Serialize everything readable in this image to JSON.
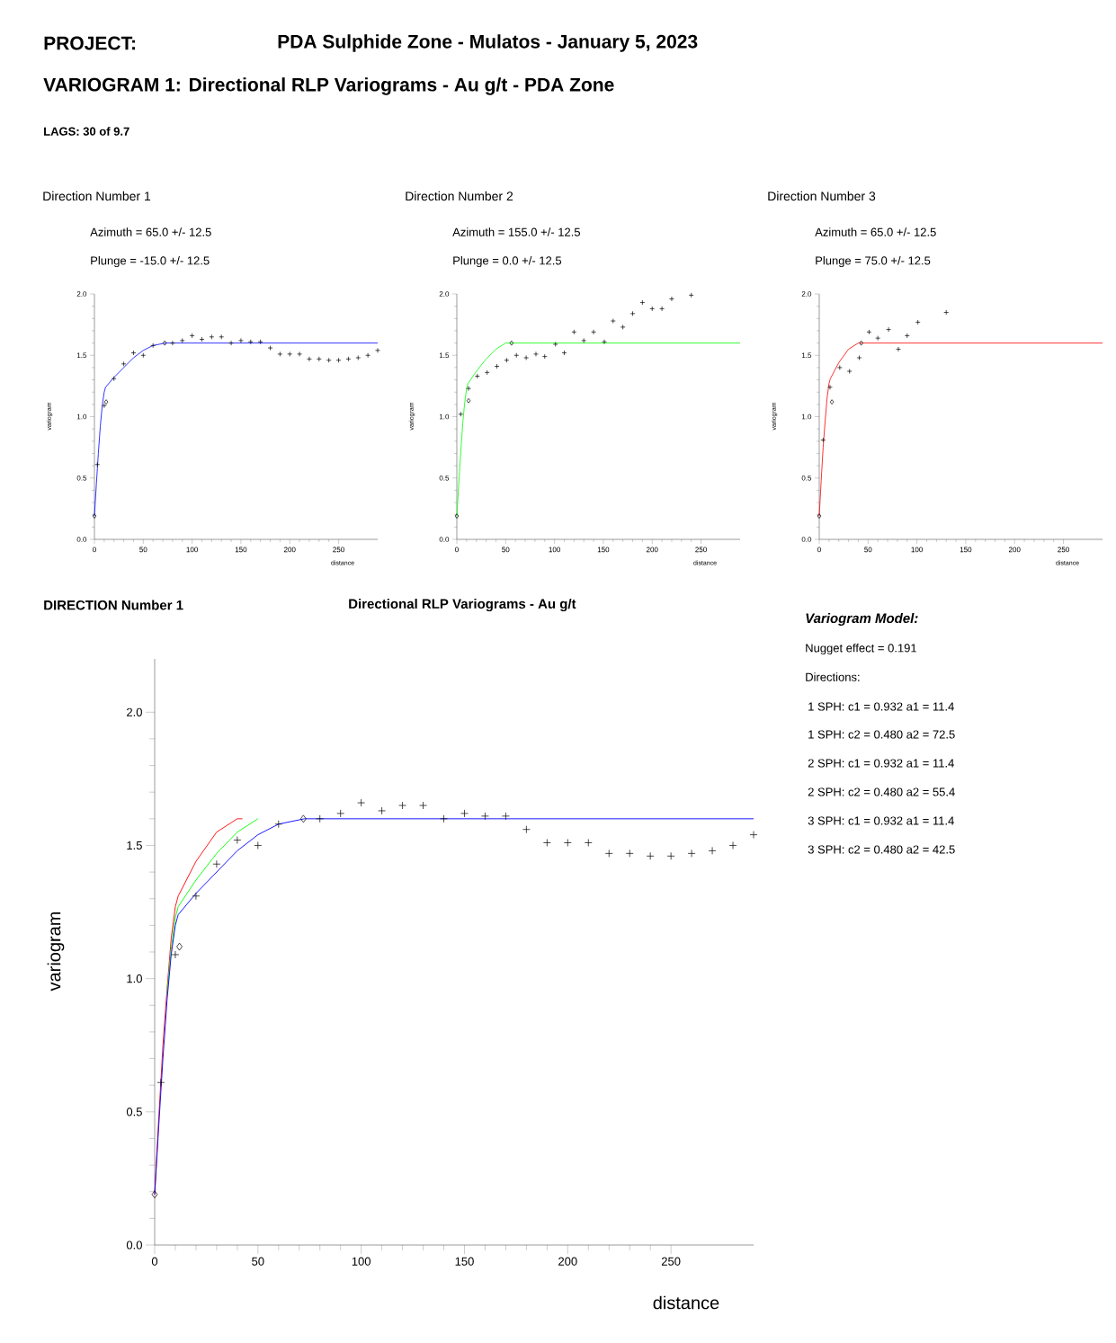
{
  "chart_data": [
    {
      "type": "other",
      "annotations": [
        "PROJECT:",
        "PDA Sulphide Zone - Mulatos - January 5, 2023",
        "VARIOGRAM 1: Directional RLP Variograms - Au g/t - PDA Zone",
        "LAGS: 30 of 9.7"
      ]
    },
    {
      "type": "line",
      "title": "Direction Number 1",
      "annotations": [
        "Azimuth = 65.0 +/- 12.5",
        "Plunge = -15.0 +/- 12.5"
      ],
      "xlabel": "distance",
      "ylabel": "variogram",
      "xlim": [
        0,
        290
      ],
      "ylim": [
        0,
        2.0
      ],
      "xticks": [
        0,
        50,
        100,
        150,
        200,
        250
      ],
      "yticks": [
        {
          "value": 0,
          "label": "0.0"
        },
        {
          "value": 0.5,
          "label": "0.5"
        },
        {
          "value": 1.0,
          "label": "1.0"
        },
        {
          "value": 1.5,
          "label": "1.5"
        },
        {
          "value": 2.0,
          "label": "2.0"
        }
      ],
      "series": [
        {
          "type": "line",
          "color": "#0000ff",
          "x": [
            0,
            2,
            4,
            6,
            8,
            10,
            11.4,
            20,
            30,
            40,
            50,
            60,
            72.5,
            290
          ],
          "values": [
            0.19,
            0.45,
            0.7,
            0.92,
            1.09,
            1.2,
            1.24,
            1.32,
            1.4,
            1.48,
            1.54,
            1.58,
            1.6,
            1.6
          ]
        },
        {
          "type": "scatter",
          "marker": "cross",
          "color": "#000000",
          "x": [
            3,
            10,
            20,
            30,
            40,
            50,
            60,
            80,
            90,
            100,
            110,
            120,
            130,
            140,
            150,
            160,
            170,
            180,
            190,
            200,
            210,
            220,
            230,
            240,
            250,
            260,
            270,
            280,
            290
          ],
          "values": [
            0.61,
            1.09,
            1.31,
            1.43,
            1.52,
            1.5,
            1.58,
            1.6,
            1.62,
            1.66,
            1.63,
            1.65,
            1.65,
            1.6,
            1.62,
            1.61,
            1.61,
            1.56,
            1.51,
            1.51,
            1.51,
            1.47,
            1.47,
            1.46,
            1.46,
            1.47,
            1.48,
            1.5,
            1.54
          ]
        },
        {
          "type": "scatter",
          "marker": "diamond",
          "color": "#000000",
          "x": [
            0,
            12,
            72
          ],
          "values": [
            0.19,
            1.12,
            1.6
          ]
        }
      ]
    },
    {
      "type": "line",
      "title": "Direction Number 2",
      "annotations": [
        "Azimuth = 155.0 +/- 12.5",
        "Plunge = 0.0 +/- 12.5"
      ],
      "xlabel": "distance",
      "ylabel": "variogram",
      "xlim": [
        0,
        290
      ],
      "ylim": [
        0,
        2.0
      ],
      "xticks": [
        0,
        50,
        100,
        150,
        200,
        250
      ],
      "yticks": [
        {
          "value": 0,
          "label": "0.0"
        },
        {
          "value": 0.5,
          "label": "0.5"
        },
        {
          "value": 1.0,
          "label": "1.0"
        },
        {
          "value": 1.5,
          "label": "1.5"
        },
        {
          "value": 2.0,
          "label": "2.0"
        }
      ],
      "series": [
        {
          "type": "line",
          "color": "#00ff00",
          "x": [
            0,
            2,
            4,
            6,
            8,
            10,
            11.4,
            20,
            30,
            40,
            50,
            55.4,
            290
          ],
          "values": [
            0.19,
            0.46,
            0.71,
            0.94,
            1.11,
            1.23,
            1.27,
            1.37,
            1.47,
            1.55,
            1.6,
            1.6,
            1.6
          ]
        },
        {
          "type": "scatter",
          "marker": "cross",
          "color": "#000000",
          "x": [
            4,
            12,
            21,
            31,
            41,
            51,
            61,
            71,
            81,
            90,
            101,
            110,
            120,
            130,
            140,
            151,
            160,
            170,
            180,
            190,
            200,
            210,
            220,
            240
          ],
          "values": [
            1.02,
            1.23,
            1.33,
            1.36,
            1.41,
            1.46,
            1.5,
            1.48,
            1.51,
            1.49,
            1.59,
            1.52,
            1.69,
            1.62,
            1.69,
            1.61,
            1.78,
            1.73,
            1.84,
            1.93,
            1.88,
            1.88,
            1.96,
            1.99
          ]
        },
        {
          "type": "scatter",
          "marker": "diamond",
          "color": "#000000",
          "x": [
            0,
            12,
            56
          ],
          "values": [
            0.19,
            1.13,
            1.6
          ]
        }
      ]
    },
    {
      "type": "line",
      "title": "Direction Number 3",
      "annotations": [
        "Azimuth = 65.0 +/- 12.5",
        "Plunge = 75.0 +/- 12.5"
      ],
      "xlabel": "distance",
      "ylabel": "variogram",
      "xlim": [
        0,
        290
      ],
      "ylim": [
        0,
        2.0
      ],
      "xticks": [
        0,
        50,
        100,
        150,
        200,
        250
      ],
      "yticks": [
        {
          "value": 0,
          "label": "0.0"
        },
        {
          "value": 0.5,
          "label": "0.5"
        },
        {
          "value": 1.0,
          "label": "1.0"
        },
        {
          "value": 1.5,
          "label": "1.5"
        },
        {
          "value": 2.0,
          "label": "2.0"
        }
      ],
      "series": [
        {
          "type": "line",
          "color": "#ff0000",
          "x": [
            0,
            2,
            4,
            6,
            8,
            10,
            11.4,
            20,
            30,
            40,
            42.5,
            290
          ],
          "values": [
            0.19,
            0.48,
            0.75,
            0.96,
            1.15,
            1.27,
            1.31,
            1.44,
            1.55,
            1.6,
            1.6,
            1.6
          ]
        },
        {
          "type": "scatter",
          "marker": "cross",
          "color": "#000000",
          "x": [
            4,
            11,
            21,
            31,
            41,
            51,
            60,
            71,
            81,
            90,
            101,
            130
          ],
          "values": [
            0.81,
            1.24,
            1.4,
            1.37,
            1.48,
            1.69,
            1.64,
            1.71,
            1.55,
            1.66,
            1.77,
            1.85
          ]
        },
        {
          "type": "scatter",
          "marker": "diamond",
          "color": "#000000",
          "x": [
            0,
            13,
            43
          ],
          "values": [
            0.19,
            1.12,
            1.6
          ]
        }
      ]
    },
    {
      "type": "line",
      "title": "DIRECTION Number 1",
      "subtitle": "Directional RLP Variograms - Au g/t",
      "xlabel": "distance",
      "ylabel": "variogram",
      "xlim": [
        0,
        290
      ],
      "ylim": [
        0,
        2.2
      ],
      "xticks": [
        0,
        50,
        100,
        150,
        200,
        250
      ],
      "yticks": [
        {
          "value": 0,
          "label": "0.0"
        },
        {
          "value": 0.5,
          "label": "0.5"
        },
        {
          "value": 1.0,
          "label": "1.0"
        },
        {
          "value": 1.5,
          "label": "1.5"
        },
        {
          "value": 2.0,
          "label": "2.0"
        }
      ],
      "series": [
        {
          "type": "line",
          "color": "#ff0000",
          "x": [
            0,
            2,
            4,
            6,
            8,
            10,
            11.4,
            20,
            30,
            40,
            42.5
          ],
          "values": [
            0.19,
            0.48,
            0.75,
            0.96,
            1.15,
            1.27,
            1.31,
            1.44,
            1.55,
            1.6,
            1.6
          ]
        },
        {
          "type": "line",
          "color": "#00ff00",
          "x": [
            6,
            8,
            10,
            11.4,
            20,
            30,
            40,
            50
          ],
          "values": [
            0.94,
            1.11,
            1.23,
            1.27,
            1.37,
            1.47,
            1.55,
            1.6
          ]
        },
        {
          "type": "line",
          "color": "#0000ff",
          "x": [
            0,
            2,
            4,
            6,
            8,
            10,
            11.4,
            20,
            30,
            40,
            50,
            60,
            72.5,
            290
          ],
          "values": [
            0.19,
            0.45,
            0.7,
            0.92,
            1.09,
            1.2,
            1.24,
            1.32,
            1.4,
            1.48,
            1.54,
            1.58,
            1.6,
            1.6
          ]
        },
        {
          "type": "scatter",
          "marker": "cross",
          "color": "#000000",
          "x": [
            3,
            10,
            20,
            30,
            40,
            50,
            60,
            80,
            90,
            100,
            110,
            120,
            130,
            140,
            150,
            160,
            170,
            180,
            190,
            200,
            210,
            220,
            230,
            240,
            250,
            260,
            270,
            280,
            290
          ],
          "values": [
            0.61,
            1.09,
            1.31,
            1.43,
            1.52,
            1.5,
            1.58,
            1.6,
            1.62,
            1.66,
            1.63,
            1.65,
            1.65,
            1.6,
            1.62,
            1.61,
            1.61,
            1.56,
            1.51,
            1.51,
            1.51,
            1.47,
            1.47,
            1.46,
            1.46,
            1.47,
            1.48,
            1.5,
            1.54
          ]
        },
        {
          "type": "scatter",
          "marker": "diamond",
          "color": "#000000",
          "x": [
            0,
            12,
            72
          ],
          "values": [
            0.19,
            1.12,
            1.6
          ]
        }
      ]
    },
    {
      "type": "other",
      "title": "Variogram Model:",
      "annotations": [
        "Nugget effect = 0.191",
        "Directions:",
        "1 SPH: c1 = 0.932 a1 = 11.4",
        "1 SPH: c2 = 0.480 a2 = 72.5",
        "2 SPH: c1 = 0.932 a1 = 11.4",
        "2 SPH: c2 = 0.480 a2 = 55.4",
        "3 SPH: c1 = 0.932 a1 = 11.4",
        "3 SPH: c2 = 0.480 a2 = 42.5"
      ]
    }
  ]
}
